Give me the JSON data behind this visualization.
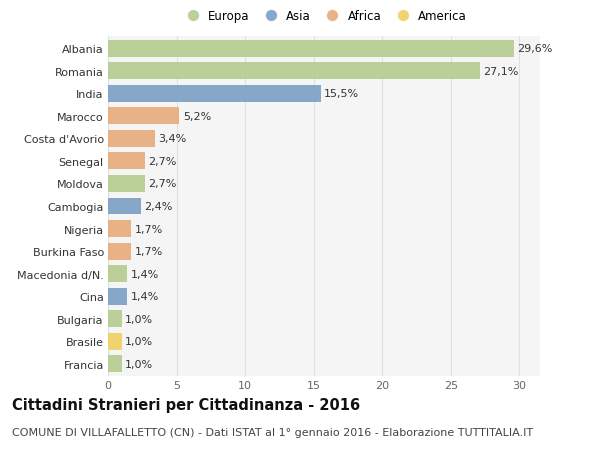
{
  "countries": [
    "Albania",
    "Romania",
    "India",
    "Marocco",
    "Costa d'Avorio",
    "Senegal",
    "Moldova",
    "Cambogia",
    "Nigeria",
    "Burkina Faso",
    "Macedonia d/N.",
    "Cina",
    "Bulgaria",
    "Brasile",
    "Francia"
  ],
  "values": [
    29.6,
    27.1,
    15.5,
    5.2,
    3.4,
    2.7,
    2.7,
    2.4,
    1.7,
    1.7,
    1.4,
    1.4,
    1.0,
    1.0,
    1.0
  ],
  "labels": [
    "29,6%",
    "27,1%",
    "15,5%",
    "5,2%",
    "3,4%",
    "2,7%",
    "2,7%",
    "2,4%",
    "1,7%",
    "1,7%",
    "1,4%",
    "1,4%",
    "1,0%",
    "1,0%",
    "1,0%"
  ],
  "continents": [
    "Europa",
    "Europa",
    "Asia",
    "Africa",
    "Africa",
    "Africa",
    "Europa",
    "Asia",
    "Africa",
    "Africa",
    "Europa",
    "Asia",
    "Europa",
    "America",
    "Europa"
  ],
  "colors": {
    "Europa": "#b5cc8e",
    "Asia": "#7b9fc4",
    "Africa": "#e8aa7a",
    "America": "#f0cf5f"
  },
  "legend_order": [
    "Europa",
    "Asia",
    "Africa",
    "America"
  ],
  "title": "Cittadini Stranieri per Cittadinanza - 2016",
  "subtitle": "COMUNE DI VILLAFALLETTO (CN) - Dati ISTAT al 1° gennaio 2016 - Elaborazione TUTTITALIA.IT",
  "xlim": [
    0,
    31.5
  ],
  "xticks": [
    0,
    5,
    10,
    15,
    20,
    25,
    30
  ],
  "background_color": "#ffffff",
  "plot_bg_color": "#f5f5f5",
  "grid_color": "#e0e0e0",
  "title_fontsize": 10.5,
  "subtitle_fontsize": 8,
  "bar_label_fontsize": 8,
  "tick_fontsize": 8,
  "legend_fontsize": 8.5
}
